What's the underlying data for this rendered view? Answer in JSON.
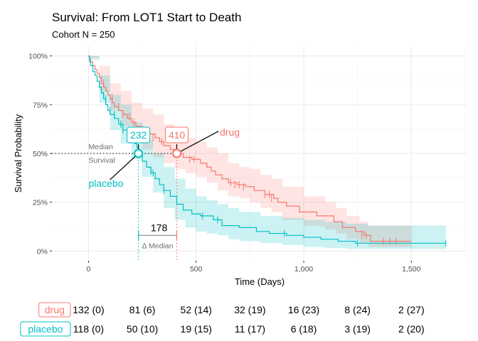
{
  "chart_data": {
    "type": "line",
    "title": "Survival: From LOT1 Start to Death",
    "subtitle": "Cohort N = 250",
    "xlabel": "Time (Days)",
    "ylabel": "Survival Probability",
    "xlim": [
      -170,
      1760
    ],
    "ylim": [
      -0.05,
      1.05
    ],
    "x_ticks": [
      0,
      500,
      1000,
      1500
    ],
    "x_tick_labels": [
      "0",
      "500",
      "1,000",
      "1,500"
    ],
    "y_ticks": [
      0,
      0.25,
      0.5,
      0.75,
      1.0
    ],
    "y_tick_labels": [
      "0%",
      "25%",
      "50%",
      "75%",
      "100%"
    ],
    "grid": true,
    "colors": {
      "drug": "#F8766D",
      "placebo": "#00BFC4"
    },
    "series": [
      {
        "name": "drug",
        "steps": [
          [
            0,
            1.0
          ],
          [
            5,
            0.985
          ],
          [
            10,
            0.97
          ],
          [
            20,
            0.95
          ],
          [
            30,
            0.93
          ],
          [
            40,
            0.91
          ],
          [
            50,
            0.89
          ],
          [
            60,
            0.86
          ],
          [
            70,
            0.84
          ],
          [
            80,
            0.82
          ],
          [
            90,
            0.8
          ],
          [
            100,
            0.78
          ],
          [
            110,
            0.76
          ],
          [
            120,
            0.74
          ],
          [
            140,
            0.72
          ],
          [
            160,
            0.7
          ],
          [
            180,
            0.68
          ],
          [
            200,
            0.66
          ],
          [
            220,
            0.64
          ],
          [
            250,
            0.62
          ],
          [
            280,
            0.6
          ],
          [
            310,
            0.58
          ],
          [
            330,
            0.56
          ],
          [
            350,
            0.54
          ],
          [
            380,
            0.52
          ],
          [
            410,
            0.5
          ],
          [
            440,
            0.48
          ],
          [
            480,
            0.47
          ],
          [
            520,
            0.45
          ],
          [
            550,
            0.43
          ],
          [
            570,
            0.41
          ],
          [
            590,
            0.39
          ],
          [
            620,
            0.37
          ],
          [
            650,
            0.35
          ],
          [
            690,
            0.34
          ],
          [
            730,
            0.33
          ],
          [
            770,
            0.31
          ],
          [
            820,
            0.29
          ],
          [
            860,
            0.27
          ],
          [
            880,
            0.25
          ],
          [
            920,
            0.23
          ],
          [
            980,
            0.2
          ],
          [
            1060,
            0.18
          ],
          [
            1140,
            0.15
          ],
          [
            1180,
            0.12
          ],
          [
            1240,
            0.1
          ],
          [
            1280,
            0.08
          ],
          [
            1310,
            0.05
          ],
          [
            1500,
            0.05
          ]
        ],
        "censors": [
          [
            70,
            0.86
          ],
          [
            110,
            0.79
          ],
          [
            140,
            0.74
          ],
          [
            160,
            0.7
          ],
          [
            190,
            0.69
          ],
          [
            210,
            0.66
          ],
          [
            230,
            0.62
          ],
          [
            300,
            0.58
          ],
          [
            340,
            0.56
          ],
          [
            470,
            0.47
          ],
          [
            490,
            0.47
          ],
          [
            660,
            0.35
          ],
          [
            680,
            0.34
          ],
          [
            700,
            0.34
          ],
          [
            720,
            0.33
          ],
          [
            820,
            0.29
          ],
          [
            840,
            0.29
          ],
          [
            850,
            0.27
          ],
          [
            1270,
            0.08
          ],
          [
            1290,
            0.08
          ],
          [
            1370,
            0.05
          ],
          [
            1400,
            0.05
          ],
          [
            1430,
            0.05
          ]
        ],
        "ci_upper": [
          [
            0,
            1.0
          ],
          [
            50,
            0.95
          ],
          [
            100,
            0.86
          ],
          [
            150,
            0.82
          ],
          [
            200,
            0.76
          ],
          [
            250,
            0.73
          ],
          [
            300,
            0.7
          ],
          [
            350,
            0.65
          ],
          [
            400,
            0.61
          ],
          [
            450,
            0.58
          ],
          [
            500,
            0.56
          ],
          [
            550,
            0.53
          ],
          [
            600,
            0.5
          ],
          [
            650,
            0.45
          ],
          [
            700,
            0.43
          ],
          [
            750,
            0.42
          ],
          [
            800,
            0.39
          ],
          [
            850,
            0.37
          ],
          [
            900,
            0.33
          ],
          [
            1000,
            0.28
          ],
          [
            1100,
            0.25
          ],
          [
            1150,
            0.22
          ],
          [
            1200,
            0.18
          ],
          [
            1260,
            0.15
          ],
          [
            1300,
            0.13
          ],
          [
            1500,
            0.13
          ]
        ],
        "ci_lower": [
          [
            0,
            0.99
          ],
          [
            50,
            0.82
          ],
          [
            100,
            0.72
          ],
          [
            150,
            0.64
          ],
          [
            200,
            0.58
          ],
          [
            250,
            0.52
          ],
          [
            300,
            0.48
          ],
          [
            350,
            0.45
          ],
          [
            400,
            0.42
          ],
          [
            450,
            0.4
          ],
          [
            500,
            0.38
          ],
          [
            550,
            0.35
          ],
          [
            600,
            0.31
          ],
          [
            650,
            0.28
          ],
          [
            700,
            0.27
          ],
          [
            750,
            0.25
          ],
          [
            800,
            0.22
          ],
          [
            850,
            0.2
          ],
          [
            900,
            0.16
          ],
          [
            1000,
            0.13
          ],
          [
            1100,
            0.11
          ],
          [
            1150,
            0.09
          ],
          [
            1200,
            0.06
          ],
          [
            1260,
            0.04
          ],
          [
            1300,
            0.02
          ],
          [
            1500,
            0.02
          ]
        ]
      },
      {
        "name": "placebo",
        "steps": [
          [
            0,
            1.0
          ],
          [
            5,
            0.97
          ],
          [
            10,
            0.95
          ],
          [
            20,
            0.92
          ],
          [
            30,
            0.9
          ],
          [
            40,
            0.87
          ],
          [
            50,
            0.84
          ],
          [
            60,
            0.81
          ],
          [
            70,
            0.78
          ],
          [
            80,
            0.75
          ],
          [
            90,
            0.72
          ],
          [
            100,
            0.7
          ],
          [
            120,
            0.68
          ],
          [
            140,
            0.65
          ],
          [
            160,
            0.62
          ],
          [
            180,
            0.59
          ],
          [
            200,
            0.57
          ],
          [
            215,
            0.55
          ],
          [
            225,
            0.53
          ],
          [
            232,
            0.5
          ],
          [
            250,
            0.46
          ],
          [
            270,
            0.43
          ],
          [
            290,
            0.4
          ],
          [
            310,
            0.37
          ],
          [
            330,
            0.34
          ],
          [
            350,
            0.31
          ],
          [
            380,
            0.28
          ],
          [
            410,
            0.24
          ],
          [
            440,
            0.21
          ],
          [
            480,
            0.19
          ],
          [
            520,
            0.18
          ],
          [
            580,
            0.16
          ],
          [
            620,
            0.13
          ],
          [
            700,
            0.12
          ],
          [
            780,
            0.1
          ],
          [
            840,
            0.09
          ],
          [
            920,
            0.08
          ],
          [
            1000,
            0.07
          ],
          [
            1080,
            0.06
          ],
          [
            1160,
            0.05
          ],
          [
            1240,
            0.04
          ],
          [
            1660,
            0.04
          ]
        ],
        "censors": [
          [
            70,
            0.8
          ],
          [
            80,
            0.78
          ],
          [
            100,
            0.72
          ],
          [
            120,
            0.7
          ],
          [
            150,
            0.65
          ],
          [
            160,
            0.62
          ],
          [
            290,
            0.41
          ],
          [
            300,
            0.4
          ],
          [
            350,
            0.31
          ],
          [
            530,
            0.18
          ],
          [
            600,
            0.16
          ],
          [
            910,
            0.09
          ],
          [
            1250,
            0.04
          ],
          [
            1660,
            0.04
          ]
        ],
        "ci_upper": [
          [
            0,
            1.0
          ],
          [
            50,
            0.9
          ],
          [
            100,
            0.8
          ],
          [
            150,
            0.75
          ],
          [
            200,
            0.66
          ],
          [
            250,
            0.57
          ],
          [
            300,
            0.5
          ],
          [
            350,
            0.43
          ],
          [
            400,
            0.37
          ],
          [
            450,
            0.32
          ],
          [
            500,
            0.28
          ],
          [
            550,
            0.26
          ],
          [
            600,
            0.24
          ],
          [
            650,
            0.22
          ],
          [
            700,
            0.2
          ],
          [
            800,
            0.18
          ],
          [
            900,
            0.17
          ],
          [
            1000,
            0.16
          ],
          [
            1100,
            0.15
          ],
          [
            1200,
            0.14
          ],
          [
            1300,
            0.13
          ],
          [
            1660,
            0.13
          ]
        ],
        "ci_lower": [
          [
            0,
            0.98
          ],
          [
            50,
            0.76
          ],
          [
            100,
            0.62
          ],
          [
            150,
            0.55
          ],
          [
            200,
            0.47
          ],
          [
            250,
            0.38
          ],
          [
            300,
            0.3
          ],
          [
            350,
            0.22
          ],
          [
            400,
            0.16
          ],
          [
            450,
            0.12
          ],
          [
            500,
            0.1
          ],
          [
            550,
            0.09
          ],
          [
            600,
            0.08
          ],
          [
            650,
            0.06
          ],
          [
            700,
            0.05
          ],
          [
            800,
            0.04
          ],
          [
            900,
            0.03
          ],
          [
            1000,
            0.02
          ],
          [
            1100,
            0.015
          ],
          [
            1200,
            0.01
          ],
          [
            1300,
            0.01
          ],
          [
            1660,
            0.01
          ]
        ]
      }
    ],
    "annotations": {
      "median_label": [
        "Median",
        "Survival"
      ],
      "medians": [
        {
          "series": "drug",
          "x": 410,
          "label": "410"
        },
        {
          "series": "placebo",
          "x": 232,
          "label": "232"
        }
      ],
      "series_labels": [
        {
          "series": "drug",
          "text": "drug",
          "at": [
            610,
            0.61
          ],
          "point": [
            410,
            0.5
          ]
        },
        {
          "series": "placebo",
          "text": "placebo",
          "at": [
            0,
            0.35
          ],
          "point": [
            232,
            0.5
          ]
        }
      ],
      "delta": {
        "value": "178",
        "label": "Δ Median",
        "x_from": 232,
        "x_to": 410,
        "y": 0.08
      }
    }
  },
  "risk_table": {
    "times": [
      0,
      250,
      500,
      750,
      1000,
      1250,
      1500
    ],
    "rows": [
      {
        "name": "drug",
        "cells": [
          "132 (0)",
          "81 (6)",
          "52 (14)",
          "32 (19)",
          "16 (23)",
          "8 (24)",
          "2 (27)"
        ]
      },
      {
        "name": "placebo",
        "cells": [
          "118 (0)",
          "50 (10)",
          "19 (15)",
          "11 (17)",
          "6 (18)",
          "3 (19)",
          "2 (20)"
        ]
      }
    ]
  }
}
